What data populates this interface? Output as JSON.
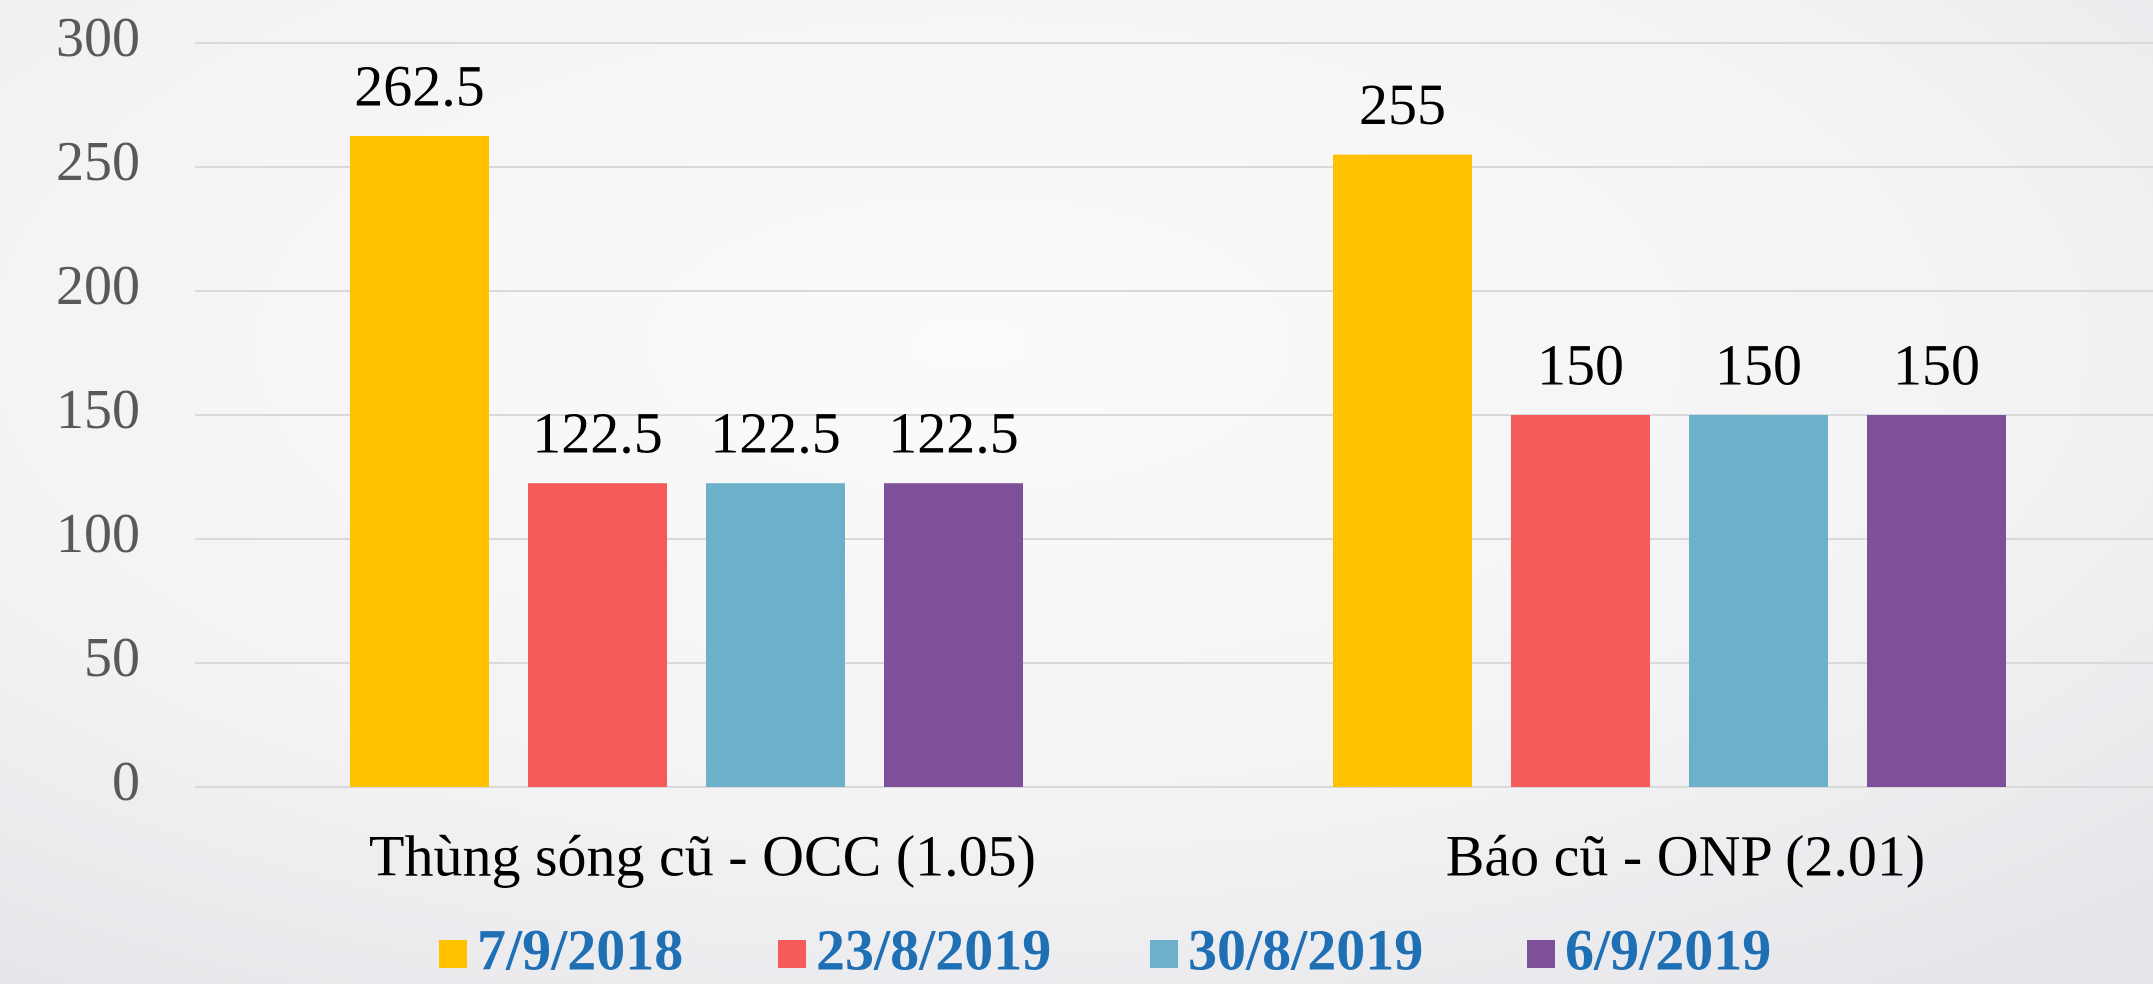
{
  "chart_data": {
    "type": "bar",
    "categories": [
      "Thùng sóng cũ - OCC (1.05)",
      "Báo cũ - ONP (2.01)"
    ],
    "series": [
      {
        "name": "7/9/2018",
        "color": "#FFC000",
        "values": [
          262.5,
          255
        ]
      },
      {
        "name": "23/8/2019",
        "color": "#F65B5B",
        "values": [
          122.5,
          150
        ]
      },
      {
        "name": "30/8/2019",
        "color": "#6CB1C9",
        "values": [
          122.5,
          150
        ]
      },
      {
        "name": "6/9/2019",
        "color": "#7F509A",
        "values": [
          122.5,
          150
        ]
      }
    ],
    "ylim": [
      0,
      300
    ],
    "yticks": [
      0,
      50,
      100,
      150,
      200,
      250,
      300
    ],
    "grid": true,
    "legend": "bottom"
  }
}
